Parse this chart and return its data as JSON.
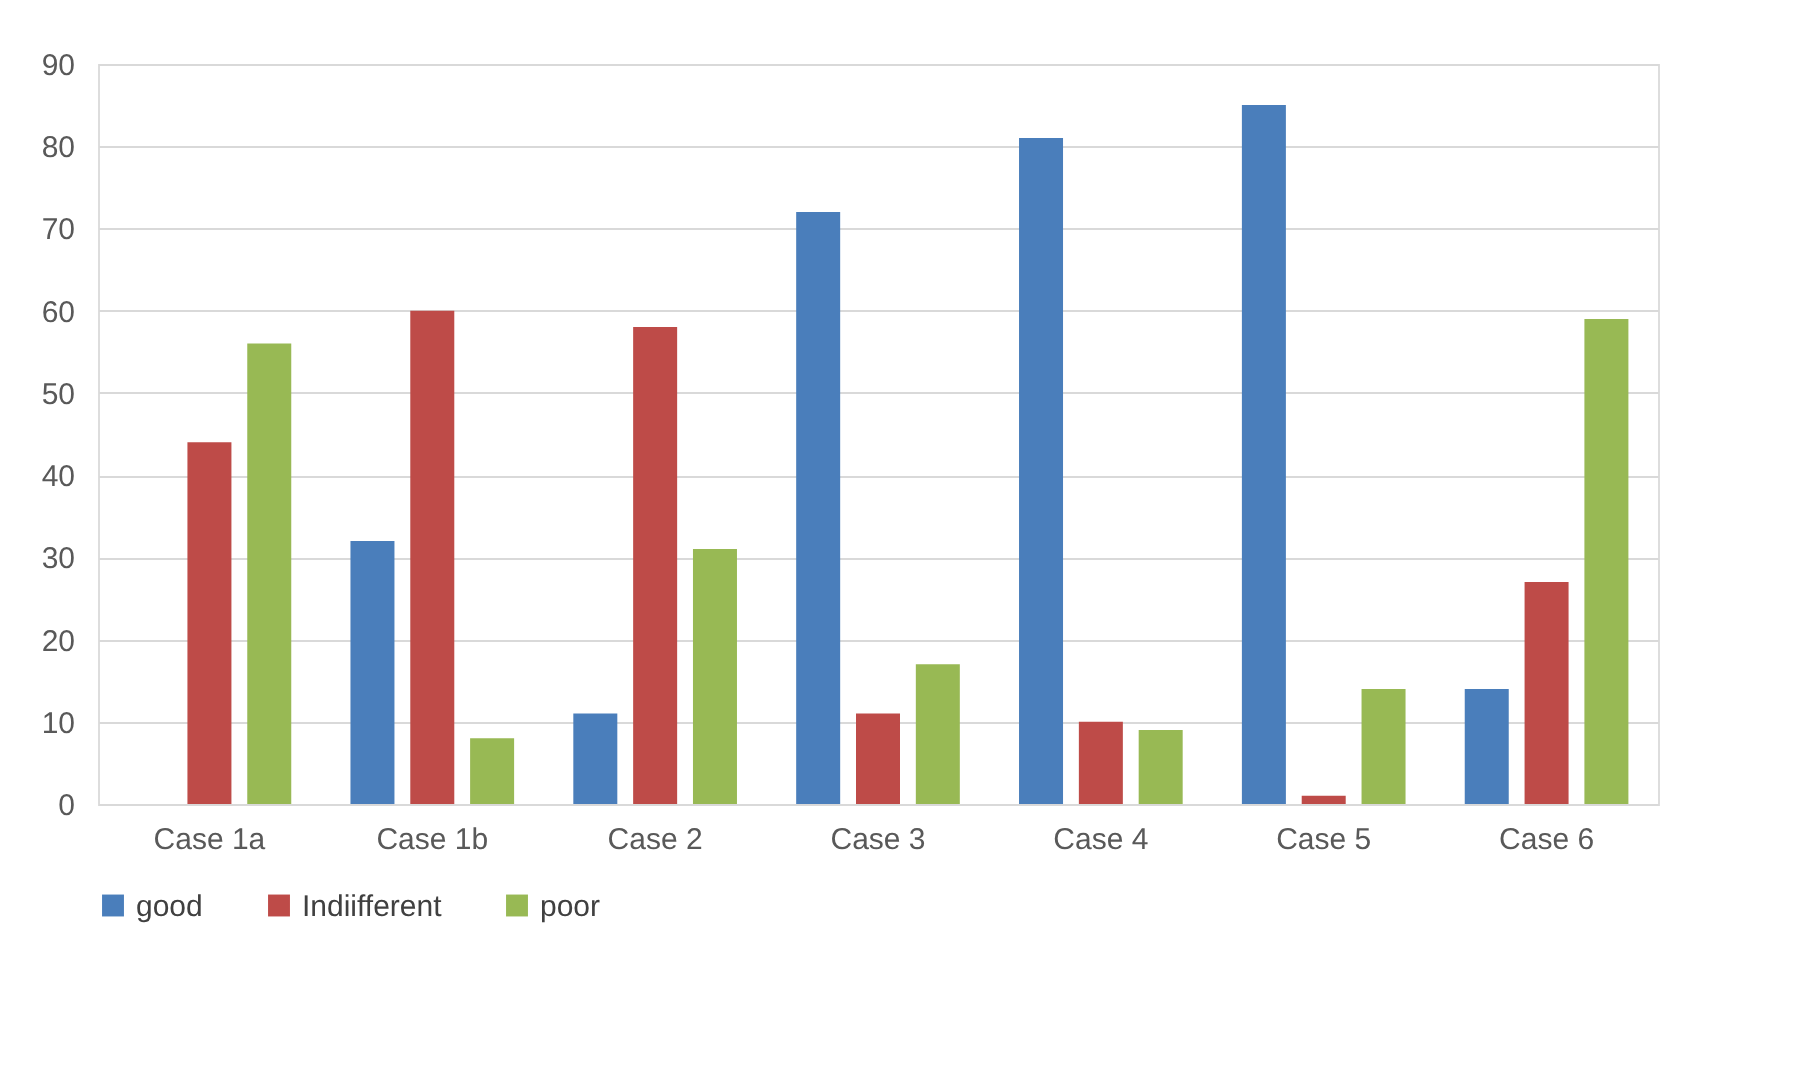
{
  "chart_data": {
    "type": "bar",
    "categories": [
      "Case 1a",
      "Case 1b",
      "Case 2",
      "Case 3",
      "Case 4",
      "Case 5",
      "Case 6"
    ],
    "series": [
      {
        "name": "good",
        "color": "#4a7ebb",
        "values": [
          0,
          32,
          11,
          72,
          81,
          85,
          14
        ]
      },
      {
        "name": "Indiifferent",
        "color": "#be4b48",
        "values": [
          44,
          60,
          58,
          11,
          10,
          1,
          27
        ]
      },
      {
        "name": "poor",
        "color": "#98b954",
        "values": [
          56,
          8,
          31,
          17,
          9,
          14,
          59
        ]
      }
    ],
    "ylim": [
      0,
      90
    ],
    "yticks": [
      0,
      10,
      20,
      30,
      40,
      50,
      60,
      70,
      80,
      90
    ],
    "grid": "y",
    "legend": "bottom"
  }
}
